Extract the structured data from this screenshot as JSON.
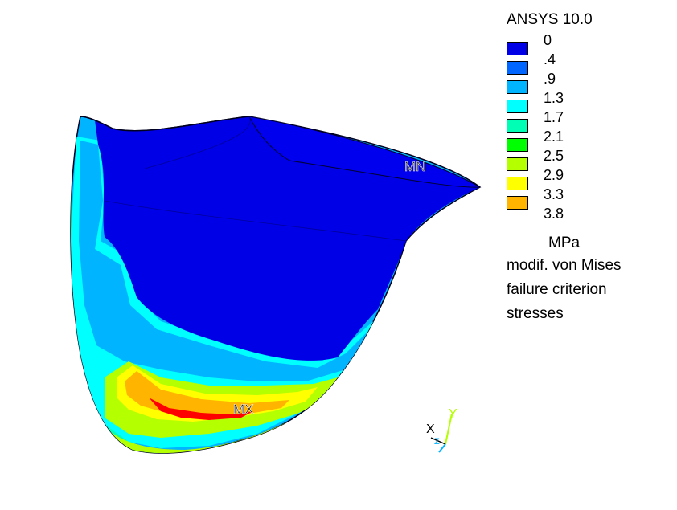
{
  "app": {
    "title": "ANSYS 10.0"
  },
  "legend": {
    "levels": [
      {
        "label": "0",
        "color": "#0000e6"
      },
      {
        "label": ".4",
        "color": "#0066ff"
      },
      {
        "label": ".9",
        "color": "#00b4ff"
      },
      {
        "label": "1.3",
        "color": "#00ffff"
      },
      {
        "label": "1.7",
        "color": "#00ffb4"
      },
      {
        "label": "2.1",
        "color": "#00ff00"
      },
      {
        "label": "2.5",
        "color": "#b4ff00"
      },
      {
        "label": "2.9",
        "color": "#ffff00"
      },
      {
        "label": "3.3",
        "color": "#ffb400"
      },
      {
        "label": "3.8",
        "color": "#ff0000"
      }
    ],
    "unit": "MPa",
    "description": [
      "modif. von Mises",
      "failure criterion",
      "stresses"
    ]
  },
  "markers": {
    "min": "MN",
    "max": "MX"
  },
  "triad": {
    "x_label": "X",
    "y_label": "Y",
    "z_label": "Z"
  }
}
